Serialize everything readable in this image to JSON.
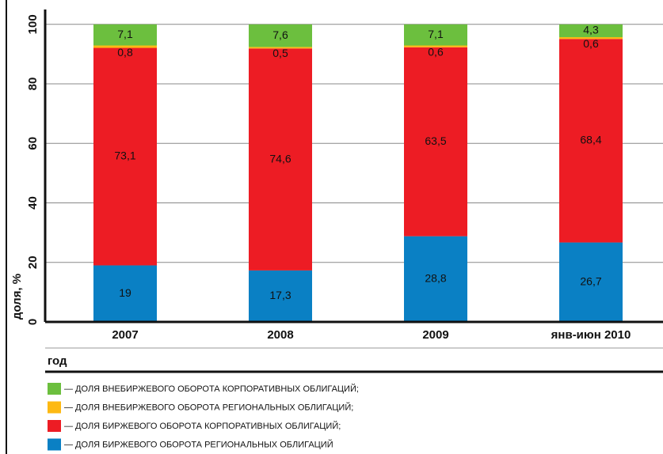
{
  "chart_data": {
    "type": "stacked_bar",
    "y_label": "доля, %",
    "x_label": "год",
    "categories": [
      "2007",
      "2008",
      "2009",
      "янв-июн 2010"
    ],
    "ylim": [
      0,
      105
    ],
    "yticks": [
      0,
      20,
      40,
      60,
      80,
      100
    ],
    "grid": true,
    "series": [
      {
        "name": "— ДОЛЯ БИРЖЕВОГО ОБОРОТА РЕГИОНАЛЬНЫХ ОБЛИГАЦИЙ",
        "color": "#0a80c4",
        "values": [
          19,
          17.3,
          28.8,
          26.7
        ],
        "value_labels": [
          "19",
          "17,3",
          "28,8",
          "26,7"
        ]
      },
      {
        "name": "— ДОЛЯ БИРЖЕВОГО ОБОРОТА КОРПОРАТИВНЫХ ОБЛИГАЦИЙ;",
        "color": "#ed1c24",
        "values": [
          73.1,
          74.6,
          63.5,
          68.4
        ],
        "value_labels": [
          "73,1",
          "74,6",
          "63,5",
          "68,4"
        ]
      },
      {
        "name": "— ДОЛЯ ВНЕБИРЖЕВОГО ОБОРОТА РЕГИОНАЛЬНЫХ ОБЛИГАЦИЙ;",
        "color": "#fdb913",
        "values": [
          0.8,
          0.5,
          0.6,
          0.6
        ],
        "value_labels": [
          "0,8",
          "0,5",
          "0,6",
          "0,6"
        ]
      },
      {
        "name": "— ДОЛЯ ВНЕБИРЖЕВОГО ОБОРОТА КОРПОРАТИВНЫХ ОБЛИГАЦИЙ;",
        "color": "#6cbf3e",
        "values": [
          7.1,
          7.6,
          7.1,
          4.3
        ],
        "value_labels": [
          "7,1",
          "7,6",
          "7,1",
          "4,3"
        ]
      }
    ]
  }
}
